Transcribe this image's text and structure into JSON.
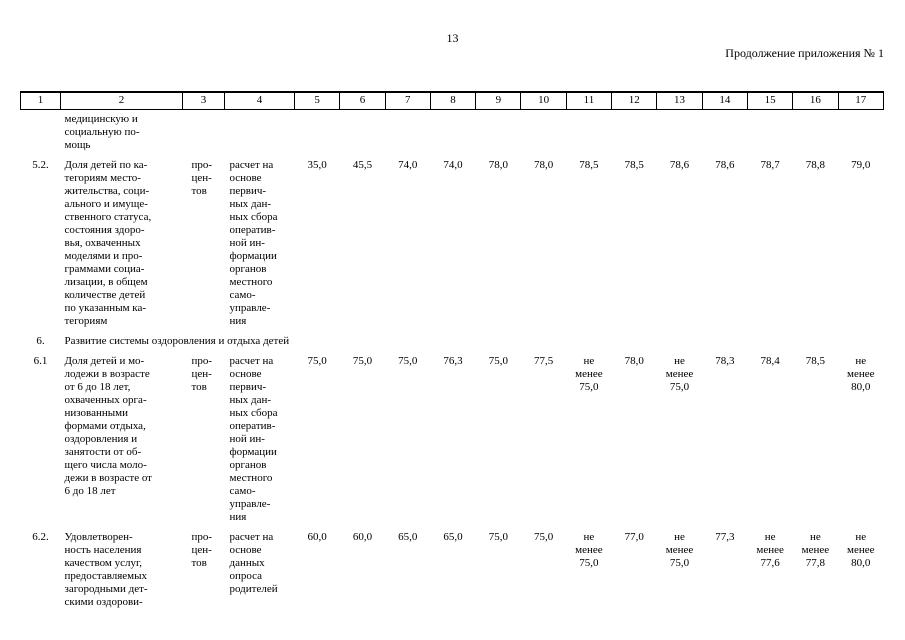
{
  "page": {
    "number": "13",
    "header_right": "Продолжение приложения № 1"
  },
  "table": {
    "column_numbers": [
      "1",
      "2",
      "3",
      "4",
      "5",
      "6",
      "7",
      "8",
      "9",
      "10",
      "11",
      "12",
      "13",
      "14",
      "15",
      "16",
      "17"
    ],
    "rows": [
      {
        "num": "",
        "name": "медицинскую и\nсоциальную по-\nмощь",
        "unit": "",
        "method": "",
        "values": []
      },
      {
        "num": "5.2.",
        "name": "Доля детей по ка-\nтегориям место-\nжительства, соци-\nального и имуще-\nственного статуса,\nсостояния здоро-\nвья, охваченных\nмоделями и про-\nграммами социа-\nлизации, в общем\nколичестве детей\nпо указанным ка-\nтегориям",
        "unit": "про-\nцен-\nтов",
        "method": "расчет на\nоснове\nпервич-\nных дан-\nных сбора\nоператив-\nной ин-\nформации\nорганов\nместного\nсамо-\nуправле-\nния",
        "values": [
          "35,0",
          "45,5",
          "74,0",
          "74,0",
          "78,0",
          "78,0",
          "78,5",
          "78,5",
          "78,6",
          "78,6",
          "78,7",
          "78,8",
          "79,0"
        ]
      },
      {
        "num": "6.",
        "section": true,
        "name": "Развитие системы оздоровления и отдыха детей"
      },
      {
        "num": "6.1",
        "name": "Доля детей и мо-\nлодежи в возрасте\nот 6 до 18 лет,\nохваченных орга-\nнизованными\nформами отдыха,\nоздоровления и\nзанятости от об-\nщего числа моло-\nдежи в возрасте от\n6 до 18 лет",
        "unit": "про-\nцен-\nтов",
        "method": "расчет на\nоснове\nпервич-\nных дан-\nных сбора\nоператив-\nной ин-\nформации\nорганов\nместного\nсамо-\nуправле-\nния",
        "values": [
          "75,0",
          "75,0",
          "75,0",
          "76,3",
          "75,0",
          "77,5",
          "не\nменее\n75,0",
          "78,0",
          "не\nменее\n75,0",
          "78,3",
          "78,4",
          "78,5",
          "не\nменее\n80,0"
        ]
      },
      {
        "num": "6.2.",
        "name": "Удовлетворен-\nность населения\nкачеством услуг,\nпредоставляемых\nзагородными дет-\nскими оздорови-",
        "unit": "про-\nцен-\nтов",
        "method": "расчет на\nоснове\nданных\nопроса\nродителей",
        "values": [
          "60,0",
          "60,0",
          "65,0",
          "65,0",
          "75,0",
          "75,0",
          "не\nменее\n75,0",
          "77,0",
          "не\nменее\n75,0",
          "77,3",
          "не\nменее\n77,6",
          "не\nменее\n77,8",
          "не\nменее\n80,0"
        ]
      }
    ]
  }
}
